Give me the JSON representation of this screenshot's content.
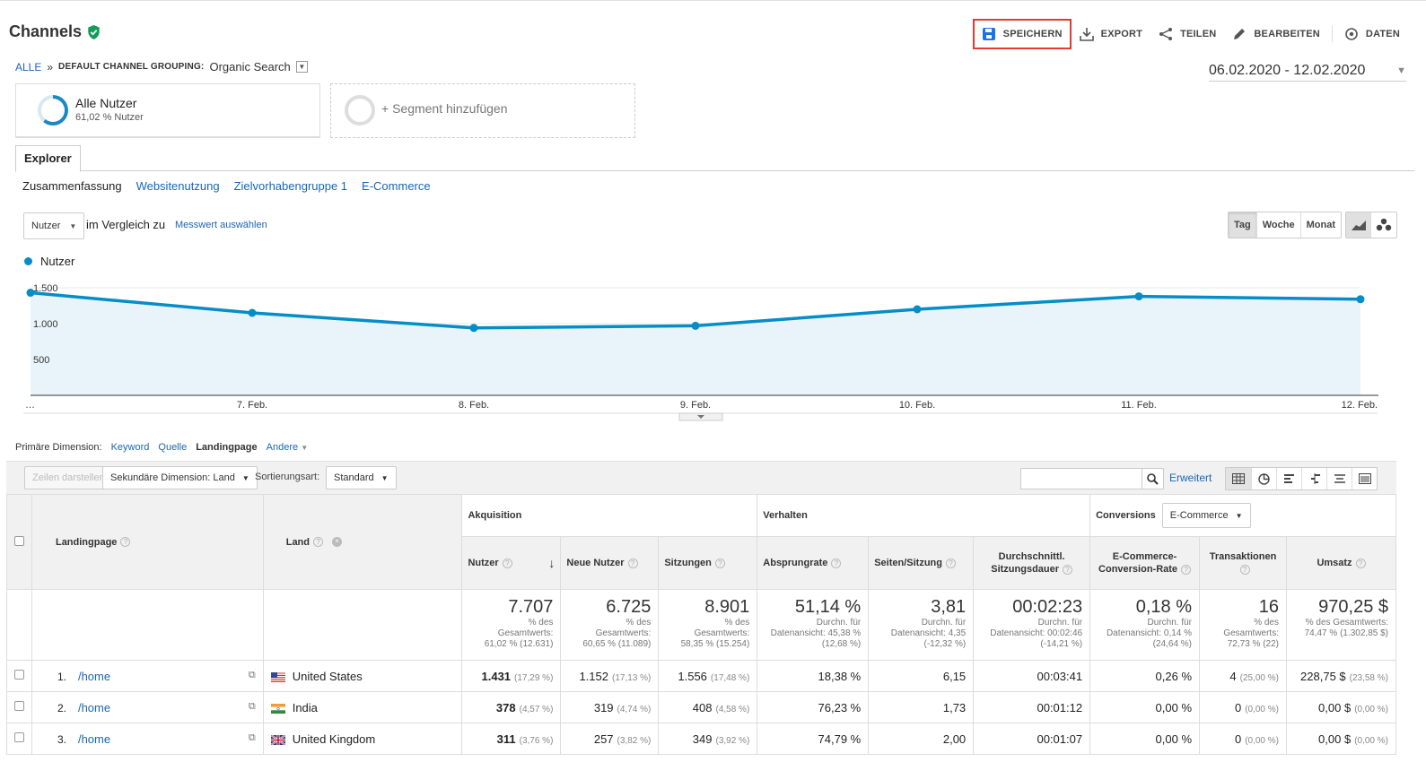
{
  "header": {
    "title": "Channels"
  },
  "toolbar": {
    "save": "SPEICHERN",
    "export": "EXPORT",
    "share": "TEILEN",
    "edit": "BEARBEITEN",
    "data": "DATEN"
  },
  "breadcrumb": {
    "root": "ALLE",
    "separator": "»",
    "label": "DEFAULT CHANNEL GROUPING:",
    "value": "Organic Search"
  },
  "date_range": "06.02.2020 - 12.02.2020",
  "segments": [
    {
      "title": "Alle Nutzer",
      "sub": "61,02 % Nutzer",
      "pct": 61.02
    },
    {
      "title": "+ Segment hinzufügen"
    }
  ],
  "tab": "Explorer",
  "subtabs": [
    "Zusammenfassung",
    "Websitenutzung",
    "Zielvorhabengruppe 1",
    "E-Commerce"
  ],
  "metric": {
    "selected": "Nutzer",
    "compare": "im Vergleich zu",
    "choose": "Messwert auswählen"
  },
  "periods": [
    "Tag",
    "Woche",
    "Monat"
  ],
  "chart_data": {
    "type": "area",
    "series": [
      {
        "name": "Nutzer",
        "values": [
          1431,
          1150,
          940,
          970,
          1200,
          1380,
          1340
        ]
      }
    ],
    "x": [
      "…",
      "7. Feb.",
      "8. Feb.",
      "9. Feb.",
      "10. Feb.",
      "11. Feb.",
      "12. Feb."
    ],
    "yticks": [
      "500",
      "1.000",
      "1.500"
    ],
    "ylim": [
      0,
      1500
    ],
    "color": "#058dc7"
  },
  "primary_dimension": {
    "label": "Primäre Dimension:",
    "options": [
      "Keyword",
      "Quelle",
      "Landingpage",
      "Andere"
    ],
    "active": "Landingpage"
  },
  "controls": {
    "plot_rows": "Zeilen darstellen",
    "secondary": "Sekundäre Dimension: Land",
    "sort_label": "Sortierungsart:",
    "sort": "Standard",
    "advanced": "Erweitert"
  },
  "table": {
    "col_landing": "Landingpage",
    "col_land": "Land",
    "groups": {
      "acq": "Akquisition",
      "beh": "Verhalten",
      "conv": "Conversions",
      "conv_select": "E-Commerce"
    },
    "metrics": [
      "Nutzer",
      "Neue Nutzer",
      "Sitzungen",
      "Absprungrate",
      "Seiten/Sitzung",
      "Durchschnittl. Sitzungsdauer",
      "E-Commerce-Conversion-Rate",
      "Transaktionen",
      "Umsatz"
    ],
    "totals": [
      {
        "big": "7.707",
        "s1": "% des",
        "s2": "Gesamtwerts:",
        "s3": "61,02 % (12.631)"
      },
      {
        "big": "6.725",
        "s1": "% des",
        "s2": "Gesamtwerts:",
        "s3": "60,65 % (11.089)"
      },
      {
        "big": "8.901",
        "s1": "% des",
        "s2": "Gesamtwerts:",
        "s3": "58,35 % (15.254)"
      },
      {
        "big": "51,14 %",
        "s1": "Durchn. für",
        "s2": "Datenansicht: 45,38 %",
        "s3": "(12,68 %)"
      },
      {
        "big": "3,81",
        "s1": "Durchn. für",
        "s2": "Datenansicht: 4,35",
        "s3": "(-12,32 %)"
      },
      {
        "big": "00:02:23",
        "s1": "Durchn. für",
        "s2": "Datenansicht: 00:02:46",
        "s3": "(-14,21 %)"
      },
      {
        "big": "0,18 %",
        "s1": "Durchn. für",
        "s2": "Datenansicht: 0,14 %",
        "s3": "(24,64 %)"
      },
      {
        "big": "16",
        "s1": "% des",
        "s2": "Gesamtwerts:",
        "s3": "72,73 % (22)"
      },
      {
        "big": "970,25 $",
        "s1": "% des Gesamtwerts:",
        "s2": "74,47 % (1.302,85 $)",
        "s3": ""
      }
    ],
    "rows": [
      {
        "n": "1.",
        "page": "/home",
        "country": "United States",
        "v": [
          "1.431",
          "1.152",
          "1.556",
          "18,38 %",
          "6,15",
          "00:03:41",
          "0,26 %",
          "4",
          "228,75 $"
        ],
        "p": [
          "(17,29 %)",
          "(17,13 %)",
          "(17,48 %)",
          "",
          "",
          "",
          "",
          "(25,00 %)",
          "(23,58 %)"
        ]
      },
      {
        "n": "2.",
        "page": "/home",
        "country": "India",
        "v": [
          "378",
          "319",
          "408",
          "76,23 %",
          "1,73",
          "00:01:12",
          "0,00 %",
          "0",
          "0,00 $"
        ],
        "p": [
          "(4,57 %)",
          "(4,74 %)",
          "(4,58 %)",
          "",
          "",
          "",
          "",
          "(0,00 %)",
          "(0,00 %)"
        ]
      },
      {
        "n": "3.",
        "page": "/home",
        "country": "United Kingdom",
        "v": [
          "311",
          "257",
          "349",
          "74,79 %",
          "2,00",
          "00:01:07",
          "0,00 %",
          "0",
          "0,00 $"
        ],
        "p": [
          "(3,76 %)",
          "(3,82 %)",
          "(3,92 %)",
          "",
          "",
          "",
          "",
          "(0,00 %)",
          "(0,00 %)"
        ]
      }
    ]
  }
}
